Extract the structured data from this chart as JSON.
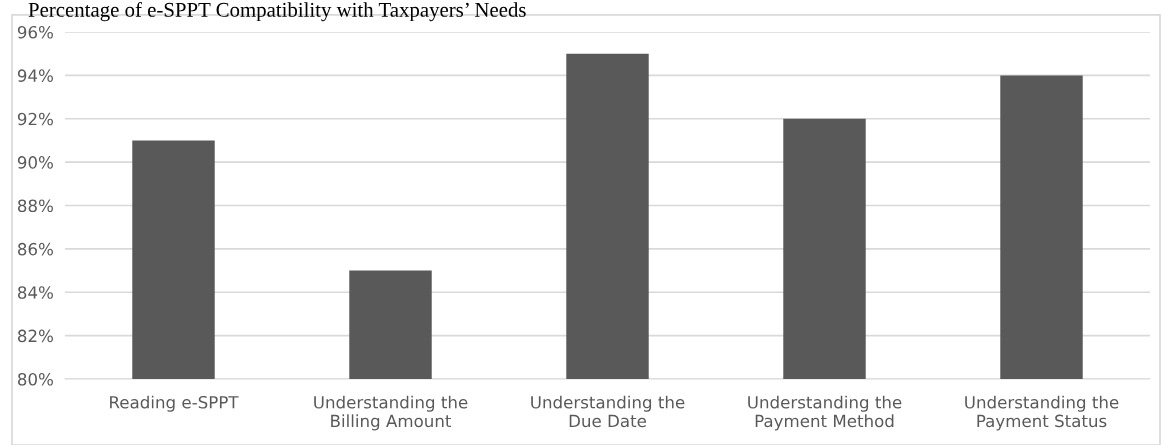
{
  "chart_data": {
    "type": "bar",
    "title": "Percentage of e-SPPT Compatibility with Taxpayers’ Needs",
    "categories": [
      "Reading e-SPPT",
      "Understanding the\nBilling Amount",
      "Understanding the\nDue Date",
      "Understanding the\nPayment Method",
      "Understanding the\nPayment Status"
    ],
    "values": [
      91,
      85,
      95,
      92,
      94
    ],
    "color": "#595959",
    "ylim": [
      80,
      96
    ],
    "yticks": [
      {
        "value": 80,
        "label": "80%"
      },
      {
        "value": 82,
        "label": "82%"
      },
      {
        "value": 84,
        "label": "84%"
      },
      {
        "value": 86,
        "label": "86%"
      },
      {
        "value": 88,
        "label": "88%"
      },
      {
        "value": 90,
        "label": "90%"
      },
      {
        "value": 92,
        "label": "92%"
      },
      {
        "value": 94,
        "label": "94%"
      },
      {
        "value": 96,
        "label": "96%"
      }
    ],
    "grid": "y",
    "legend": false
  }
}
